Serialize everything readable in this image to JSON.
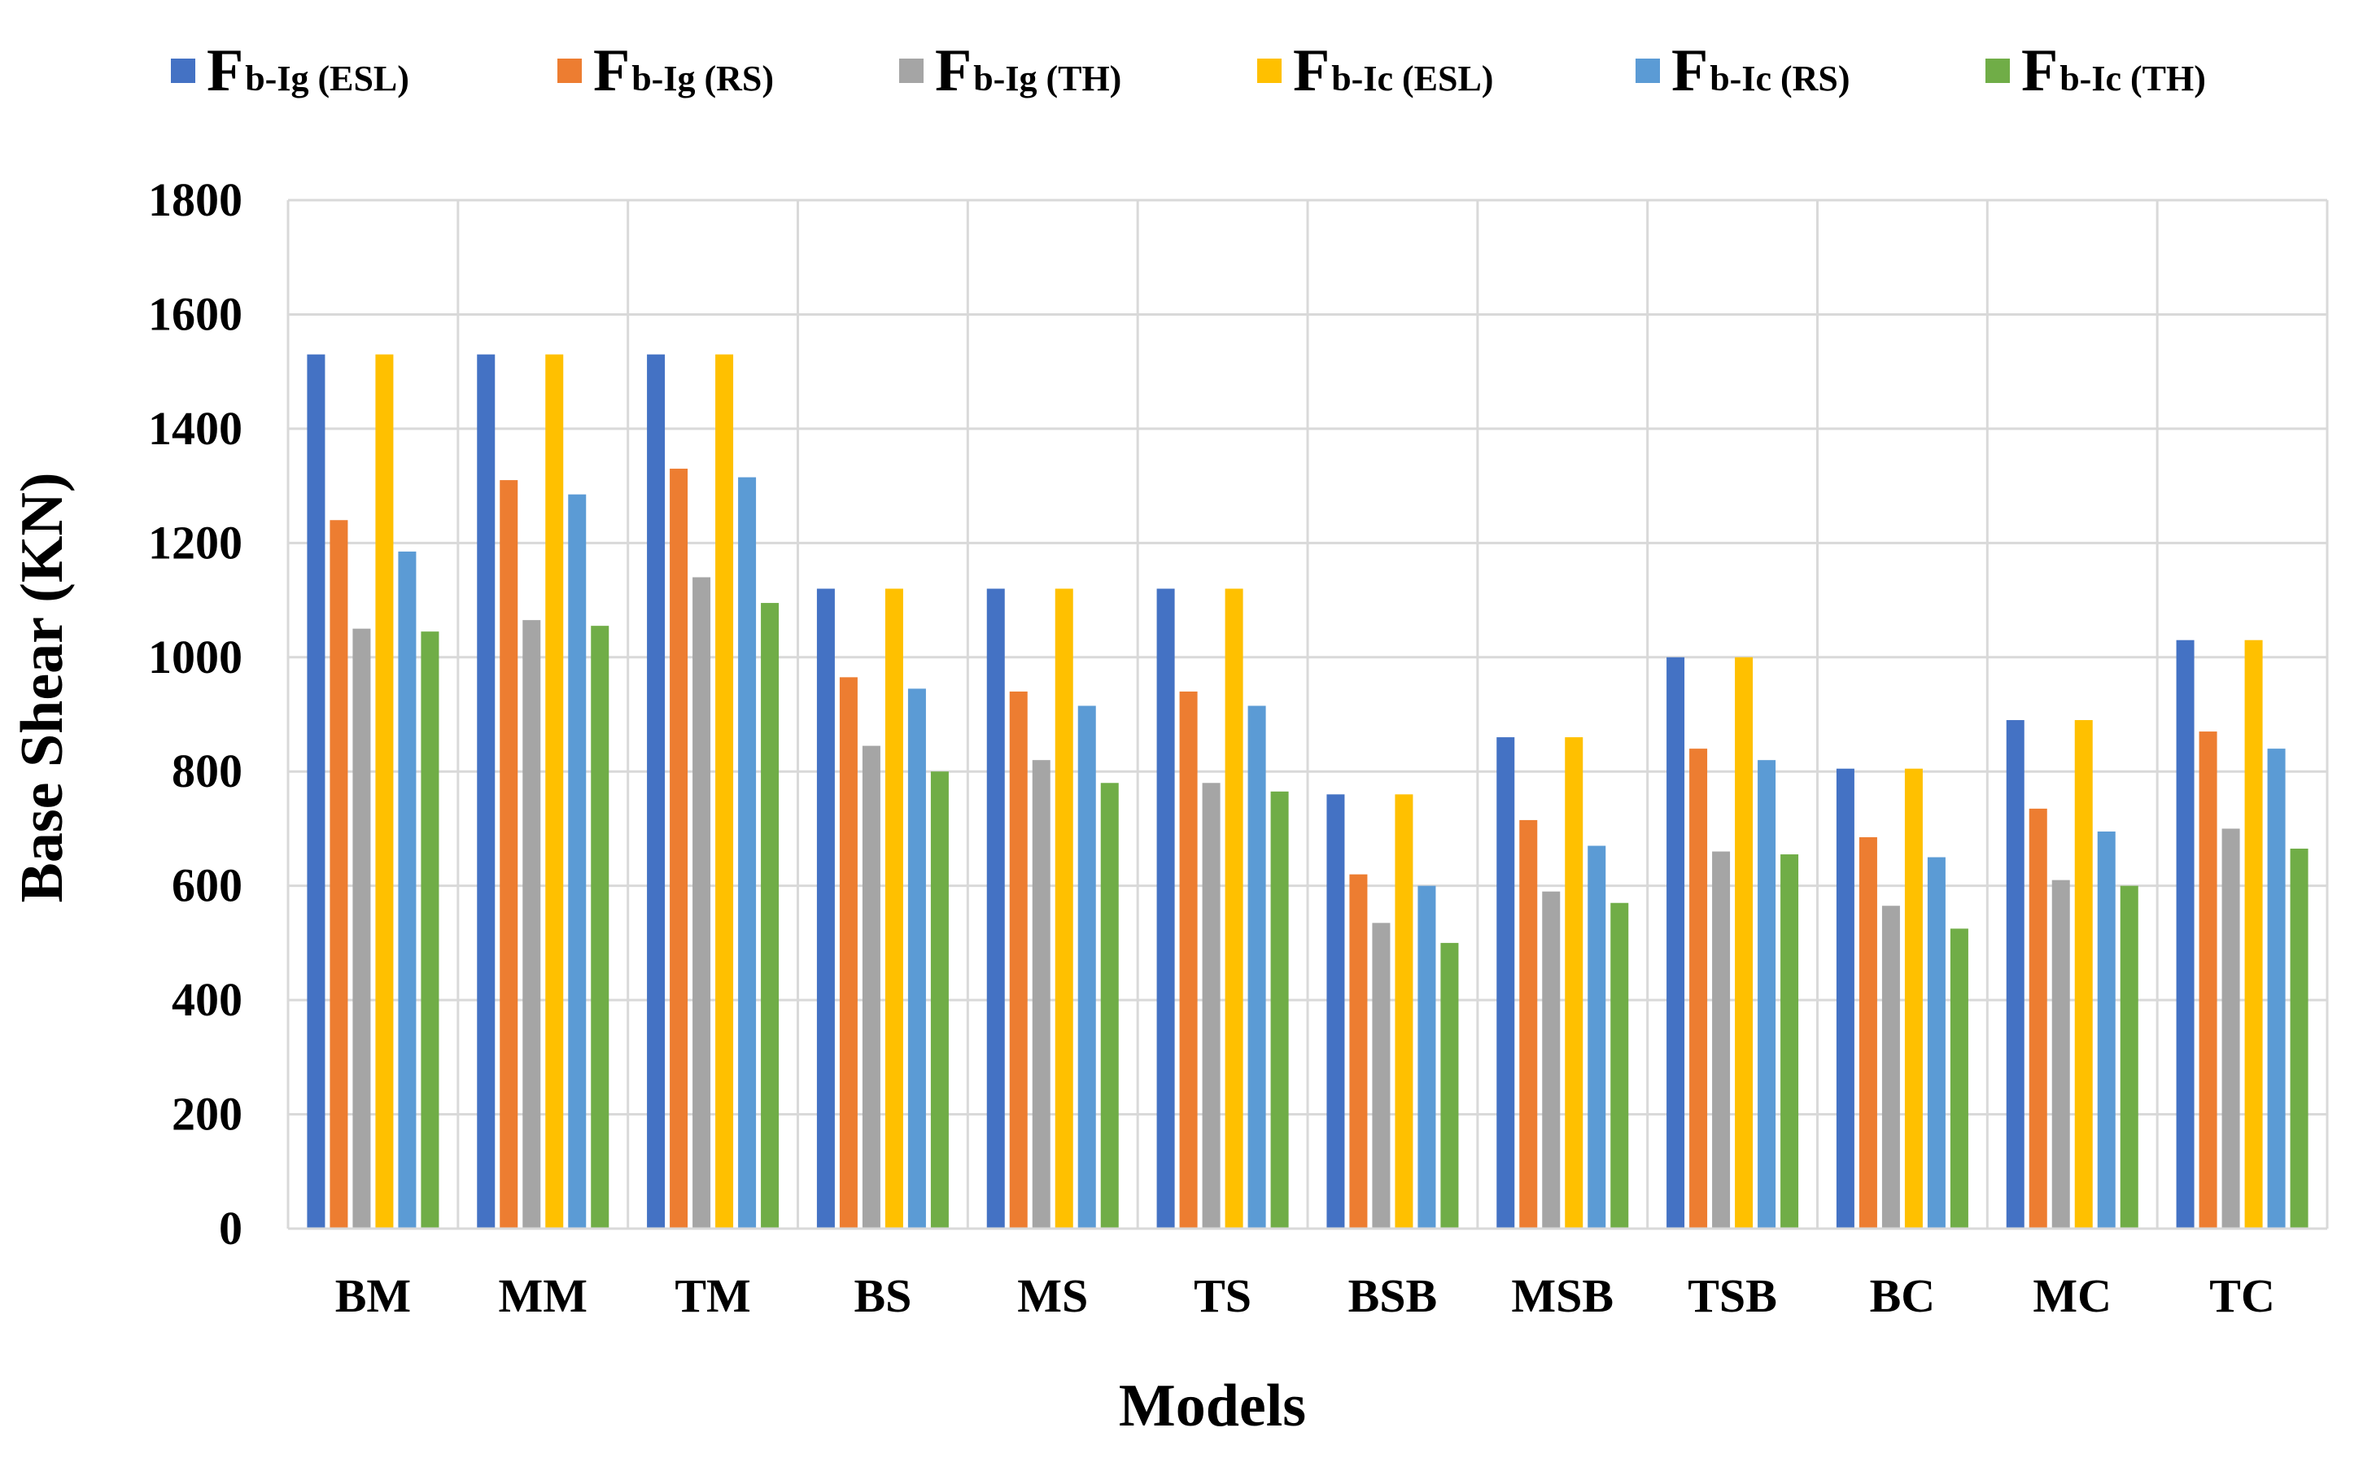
{
  "chart_data": {
    "type": "bar",
    "title": "",
    "xlabel": "Models",
    "ylabel": "Base Shear (KN)",
    "ylim": [
      0,
      1800
    ],
    "ytick_step": 200,
    "grid": true,
    "legend_position": "top",
    "categories": [
      "BM",
      "MM",
      "TM",
      "BS",
      "MS",
      "TS",
      "BSB",
      "MSB",
      "TSB",
      "BC",
      "MC",
      "TC"
    ],
    "series": [
      {
        "name": "Fb-Ig (ESL)",
        "symbol": "F",
        "subscript": "b-Ig (ESL)",
        "color": "#4472C4",
        "values": [
          1530,
          1530,
          1530,
          1120,
          1120,
          1120,
          760,
          860,
          1000,
          805,
          890,
          1030
        ]
      },
      {
        "name": "Fb-Ig (RS)",
        "symbol": "F",
        "subscript": "b-Ig (RS)",
        "color": "#ED7D31",
        "values": [
          1240,
          1310,
          1330,
          965,
          940,
          940,
          620,
          715,
          840,
          685,
          735,
          870
        ]
      },
      {
        "name": "Fb-Ig (TH)",
        "symbol": "F",
        "subscript": "b-Ig (TH)",
        "color": "#A5A5A5",
        "values": [
          1050,
          1065,
          1140,
          845,
          820,
          780,
          535,
          590,
          660,
          565,
          610,
          700
        ]
      },
      {
        "name": "Fb-Ic (ESL)",
        "symbol": "F",
        "subscript": "b-Ic (ESL)",
        "color": "#FFC000",
        "values": [
          1530,
          1530,
          1530,
          1120,
          1120,
          1120,
          760,
          860,
          1000,
          805,
          890,
          1030
        ]
      },
      {
        "name": "Fb-Ic (RS)",
        "symbol": "F",
        "subscript": "b-Ic (RS)",
        "color": "#5B9BD5",
        "values": [
          1185,
          1285,
          1315,
          945,
          915,
          915,
          600,
          670,
          820,
          650,
          695,
          840
        ]
      },
      {
        "name": "Fb-Ic (TH)",
        "symbol": "F",
        "subscript": "b-Ic (TH)",
        "color": "#70AD47",
        "values": [
          1045,
          1055,
          1095,
          800,
          780,
          765,
          500,
          570,
          655,
          525,
          600,
          665
        ]
      }
    ]
  }
}
